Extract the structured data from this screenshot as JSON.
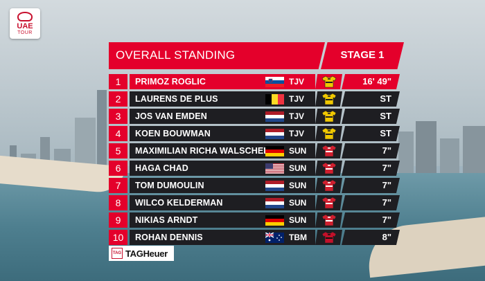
{
  "logo": {
    "line1": "UAE",
    "line2": "TOUR"
  },
  "header": {
    "title": "OVERALL STANDING",
    "stage": "STAGE 1"
  },
  "colors": {
    "accent": "#e4002b",
    "row_bg": "#1e1e22",
    "yellow_jersey": "#f0c800",
    "red_jersey": "#d11f2f"
  },
  "standings": [
    {
      "pos": "1",
      "name": "PRIMOZ ROGLIC",
      "flag": "slovenia",
      "team": "TJV",
      "jersey": "yellow-jersey-icon",
      "time": "16' 49\""
    },
    {
      "pos": "2",
      "name": "LAURENS DE PLUS",
      "flag": "belgium",
      "team": "TJV",
      "jersey": "yellow-jersey-icon",
      "time": "ST"
    },
    {
      "pos": "3",
      "name": "JOS VAN EMDEN",
      "flag": "netherlands",
      "team": "TJV",
      "jersey": "yellow-jersey-icon",
      "time": "ST"
    },
    {
      "pos": "4",
      "name": "KOEN BOUWMAN",
      "flag": "netherlands",
      "team": "TJV",
      "jersey": "yellow-jersey-icon",
      "time": "ST"
    },
    {
      "pos": "5",
      "name": "MAXIMILIAN RICHA WALSCHEID",
      "flag": "germany",
      "team": "SUN",
      "jersey": "red-jersey-icon",
      "time": "7\""
    },
    {
      "pos": "6",
      "name": "HAGA CHAD",
      "flag": "usa",
      "team": "SUN",
      "jersey": "red-jersey-icon",
      "time": "7\""
    },
    {
      "pos": "7",
      "name": "TOM DUMOULIN",
      "flag": "netherlands",
      "team": "SUN",
      "jersey": "red-jersey-icon",
      "time": "7\""
    },
    {
      "pos": "8",
      "name": "WILCO KELDERMAN",
      "flag": "netherlands",
      "team": "SUN",
      "jersey": "red-jersey-icon",
      "time": "7\""
    },
    {
      "pos": "9",
      "name": "NIKIAS ARNDT",
      "flag": "germany",
      "team": "SUN",
      "jersey": "red-jersey-icon",
      "time": "7\""
    },
    {
      "pos": "10",
      "name": "ROHAN DENNIS",
      "flag": "australia",
      "team": "TBM",
      "jersey": "red-black-jersey-icon",
      "time": "8\""
    }
  ],
  "sponsor": {
    "badge": "TAG",
    "name": "TAGHeuer"
  }
}
